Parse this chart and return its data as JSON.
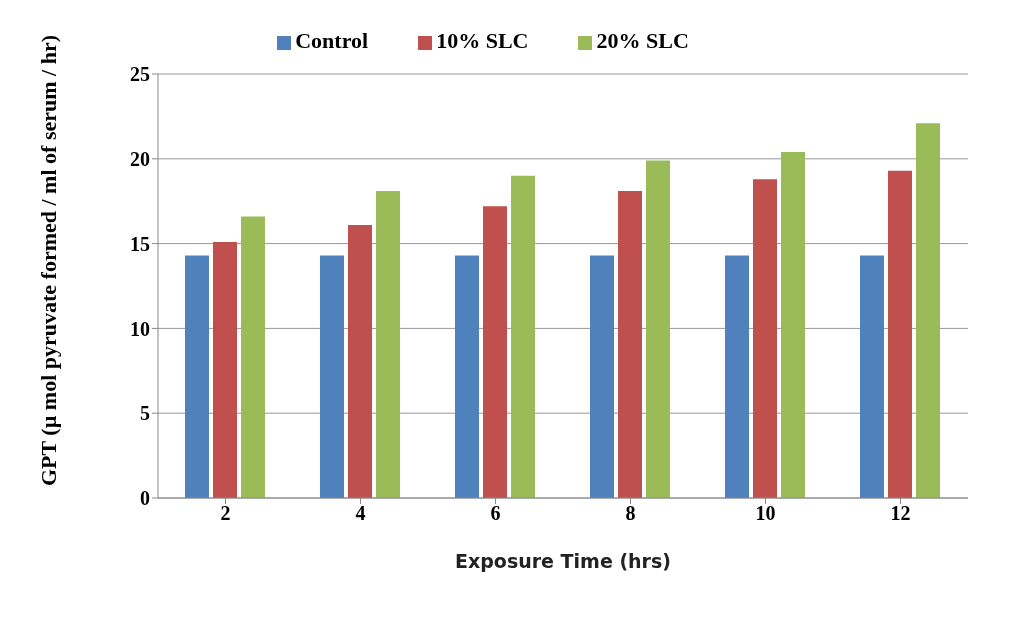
{
  "chart_data": {
    "type": "bar",
    "xlabel": "Exposure Time (hrs)",
    "ylabel": "GPT (µ mol pyruvate formed / ml of serum / hr)",
    "categories": [
      "2",
      "4",
      "6",
      "8",
      "10",
      "12"
    ],
    "series": [
      {
        "name": "Control",
        "color": "#4f81bd",
        "values": [
          14.3,
          14.3,
          14.3,
          14.3,
          14.3,
          14.3
        ]
      },
      {
        "name": "10% SLC",
        "color": "#c0504d",
        "values": [
          15.1,
          16.1,
          17.2,
          18.1,
          18.8,
          19.3
        ]
      },
      {
        "name": "20% SLC",
        "color": "#9bbb59",
        "values": [
          16.6,
          18.1,
          19.0,
          19.9,
          20.4,
          22.1
        ]
      }
    ],
    "ylim": [
      0,
      25
    ],
    "yticks": [
      0,
      5,
      10,
      15,
      20,
      25
    ],
    "grid": "y",
    "legend": "top"
  }
}
